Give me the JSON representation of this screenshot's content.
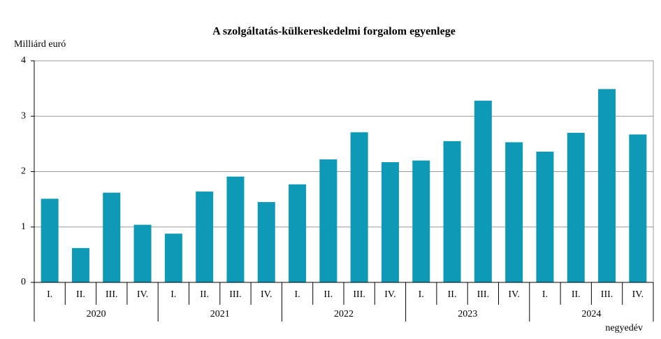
{
  "chart_data": {
    "type": "bar",
    "title": "A szolgáltatás-külkereskedelmi forgalom egyenlege",
    "y_label": "Milliárd euró",
    "x_label": "negyedév",
    "categories": [
      "I.",
      "II.",
      "III.",
      "IV.",
      "I.",
      "II.",
      "III.",
      "IV.",
      "I.",
      "II.",
      "III.",
      "IV.",
      "I.",
      "II.",
      "III.",
      "IV.",
      "I.",
      "II.",
      "III.",
      "IV."
    ],
    "groups": [
      "2020",
      "2021",
      "2022",
      "2023",
      "2024"
    ],
    "values": [
      1.51,
      0.62,
      1.62,
      1.04,
      0.88,
      1.64,
      1.91,
      1.45,
      1.77,
      2.22,
      2.71,
      2.17,
      2.2,
      2.55,
      3.28,
      2.53,
      2.36,
      2.7,
      3.49,
      2.67
    ],
    "color": "#0e9ab6",
    "ylim": [
      0,
      4
    ],
    "yticks": [
      0,
      1,
      2,
      3,
      4
    ],
    "grid": true
  }
}
